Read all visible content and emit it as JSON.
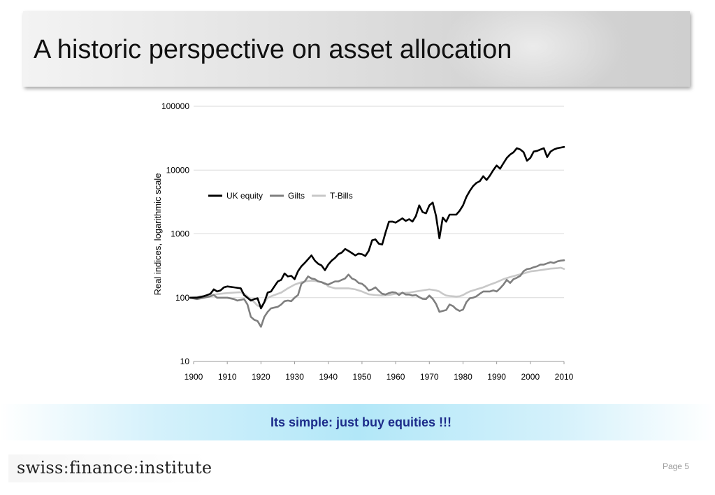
{
  "slide": {
    "title": "A historic perspective on asset allocation",
    "callout": "Its simple: just buy equities !!!",
    "logo": {
      "part1": "swiss",
      "part2": "finance",
      "part3": "institute",
      "separator": ":"
    },
    "page": "Page 5"
  },
  "chart_data": {
    "type": "line",
    "title": "",
    "xlabel": "",
    "ylabel": "Real indices, logarithmic scale",
    "yscale": "log",
    "ylim": [
      10,
      100000
    ],
    "xlim": [
      1900,
      2010
    ],
    "yticks": [
      "10",
      "100",
      "1000",
      "10000",
      "100000"
    ],
    "yticks_values": [
      10,
      100,
      1000,
      10000,
      100000
    ],
    "xticks": [
      "1900",
      "1910",
      "1920",
      "1930",
      "1940",
      "1950",
      "1960",
      "1970",
      "1980",
      "1990",
      "2000",
      "2010"
    ],
    "grid": "horizontal",
    "legend_placement": "upper-left",
    "series": [
      {
        "name": "UK equity",
        "color": "#000000",
        "x": [
          1899,
          1901,
          1903,
          1905,
          1906,
          1907,
          1908,
          1909,
          1910,
          1912,
          1914,
          1915,
          1917,
          1918,
          1919,
          1920,
          1921,
          1922,
          1923,
          1924,
          1925,
          1926,
          1927,
          1928,
          1929,
          1930,
          1931,
          1932,
          1933,
          1934,
          1935,
          1936,
          1937,
          1938,
          1939,
          1940,
          1941,
          1942,
          1943,
          1944,
          1945,
          1946,
          1947,
          1948,
          1949,
          1950,
          1951,
          1952,
          1953,
          1954,
          1955,
          1956,
          1957,
          1958,
          1959,
          1960,
          1962,
          1963,
          1964,
          1965,
          1966,
          1967,
          1968,
          1969,
          1970,
          1971,
          1972,
          1973,
          1974,
          1975,
          1976,
          1977,
          1978,
          1979,
          1980,
          1981,
          1982,
          1983,
          1984,
          1985,
          1986,
          1987,
          1988,
          1989,
          1990,
          1991,
          1992,
          1993,
          1994,
          1995,
          1996,
          1997,
          1998,
          1999,
          2000,
          2001,
          2002,
          2003,
          2004,
          2005,
          2006,
          2007,
          2008,
          2009,
          2010
        ],
        "y": [
          100,
          100,
          105,
          115,
          135,
          125,
          130,
          145,
          150,
          145,
          140,
          110,
          90,
          95,
          98,
          68,
          85,
          120,
          125,
          150,
          180,
          190,
          240,
          215,
          220,
          195,
          260,
          310,
          350,
          400,
          460,
          380,
          340,
          320,
          270,
          330,
          380,
          420,
          480,
          510,
          580,
          540,
          500,
          460,
          490,
          480,
          450,
          540,
          790,
          820,
          700,
          680,
          1050,
          1550,
          1560,
          1500,
          1750,
          1600,
          1700,
          1560,
          1900,
          2800,
          2200,
          2100,
          2800,
          3100,
          1900,
          850,
          1800,
          1550,
          2000,
          2000,
          2000,
          2300,
          2800,
          3800,
          4700,
          5600,
          6300,
          6700,
          8000,
          7000,
          8200,
          10000,
          11800,
          10500,
          12800,
          15500,
          17500,
          19000,
          22000,
          21000,
          19000,
          14000,
          15500,
          19500,
          20000,
          21000,
          22000,
          16000,
          19500,
          21000,
          22000,
          22500,
          23000
        ],
        "stroke_width": 2.6
      },
      {
        "name": "Gilts",
        "color": "#7f7f7f",
        "x": [
          1899,
          1901,
          1903,
          1905,
          1906,
          1907,
          1908,
          1910,
          1912,
          1913,
          1915,
          1916,
          1917,
          1918,
          1919,
          1920,
          1921,
          1922,
          1923,
          1925,
          1926,
          1927,
          1928,
          1929,
          1930,
          1931,
          1932,
          1933,
          1934,
          1935,
          1936,
          1937,
          1938,
          1939,
          1940,
          1941,
          1942,
          1943,
          1944,
          1945,
          1946,
          1947,
          1948,
          1949,
          1950,
          1951,
          1952,
          1953,
          1954,
          1955,
          1956,
          1957,
          1958,
          1959,
          1960,
          1961,
          1962,
          1963,
          1964,
          1965,
          1966,
          1967,
          1968,
          1969,
          1970,
          1971,
          1972,
          1973,
          1974,
          1975,
          1976,
          1977,
          1978,
          1979,
          1980,
          1981,
          1982,
          1983,
          1984,
          1985,
          1986,
          1987,
          1988,
          1989,
          1990,
          1991,
          1992,
          1993,
          1994,
          1995,
          1996,
          1997,
          1998,
          1999,
          2000,
          2001,
          2002,
          2003,
          2004,
          2005,
          2006,
          2007,
          2008,
          2009,
          2010
        ],
        "y": [
          100,
          95,
          100,
          105,
          110,
          100,
          100,
          100,
          95,
          90,
          95,
          78,
          50,
          45,
          43,
          35,
          50,
          60,
          68,
          72,
          78,
          88,
          90,
          88,
          100,
          110,
          165,
          180,
          215,
          200,
          195,
          180,
          175,
          165,
          160,
          170,
          180,
          180,
          190,
          200,
          230,
          200,
          190,
          170,
          165,
          150,
          130,
          135,
          145,
          128,
          115,
          112,
          118,
          122,
          120,
          110,
          120,
          112,
          112,
          108,
          110,
          102,
          96,
          95,
          108,
          96,
          80,
          60,
          62,
          64,
          78,
          74,
          66,
          62,
          65,
          85,
          98,
          100,
          105,
          115,
          125,
          125,
          125,
          130,
          125,
          140,
          160,
          190,
          170,
          195,
          205,
          220,
          260,
          280,
          285,
          300,
          310,
          330,
          330,
          345,
          360,
          350,
          370,
          380,
          385
        ],
        "stroke_width": 2.6
      },
      {
        "name": "T-Bills",
        "color": "#c8c8c8",
        "x": [
          1899,
          1901,
          1905,
          1908,
          1910,
          1912,
          1914,
          1915,
          1917,
          1918,
          1919,
          1920,
          1921,
          1922,
          1924,
          1926,
          1928,
          1930,
          1932,
          1933,
          1935,
          1937,
          1939,
          1940,
          1942,
          1944,
          1946,
          1948,
          1950,
          1952,
          1954,
          1956,
          1958,
          1960,
          1962,
          1964,
          1966,
          1968,
          1970,
          1972,
          1973,
          1974,
          1975,
          1976,
          1977,
          1978,
          1979,
          1980,
          1981,
          1982,
          1984,
          1986,
          1988,
          1990,
          1992,
          1994,
          1996,
          1998,
          2000,
          2002,
          2004,
          2006,
          2008,
          2009,
          2010
        ],
        "y": [
          100,
          103,
          110,
          115,
          118,
          120,
          122,
          115,
          95,
          85,
          75,
          72,
          85,
          100,
          110,
          120,
          140,
          160,
          175,
          180,
          185,
          180,
          170,
          150,
          140,
          140,
          140,
          135,
          125,
          113,
          110,
          108,
          110,
          115,
          118,
          120,
          125,
          130,
          135,
          130,
          125,
          115,
          108,
          106,
          105,
          104,
          105,
          110,
          118,
          125,
          135,
          145,
          160,
          175,
          195,
          210,
          225,
          240,
          258,
          265,
          275,
          285,
          290,
          295,
          282
        ],
        "stroke_width": 2.6
      }
    ]
  }
}
